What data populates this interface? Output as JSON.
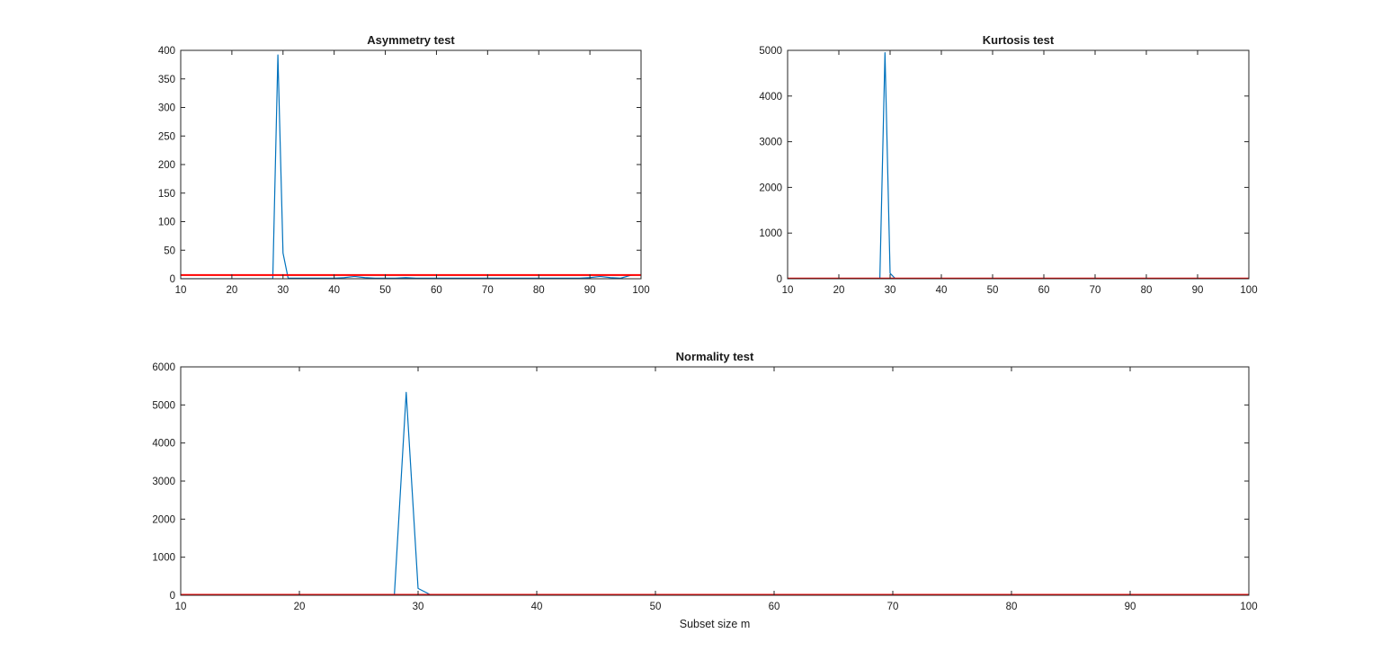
{
  "colors": {
    "series_blue": "#0072BD",
    "threshold_red": "#FF0000",
    "axes": "#262626",
    "background": "#FFFFFF"
  },
  "chart_data": [
    {
      "id": "asymmetry",
      "type": "line",
      "title": "Asymmetry test",
      "xlabel": "",
      "ylabel": "",
      "xlim": [
        10,
        100
      ],
      "ylim": [
        0,
        400
      ],
      "xticks": [
        10,
        20,
        30,
        40,
        50,
        60,
        70,
        80,
        90,
        100
      ],
      "yticks": [
        0,
        50,
        100,
        150,
        200,
        250,
        300,
        350,
        400
      ],
      "grid": false,
      "series": [
        {
          "color": "#0072BD",
          "x": [
            10,
            12,
            14,
            16,
            18,
            20,
            22,
            24,
            26,
            27,
            28,
            29,
            30,
            31,
            32,
            34,
            36,
            38,
            40,
            42,
            44,
            45,
            46,
            48,
            50,
            52,
            54,
            56,
            58,
            60,
            62,
            64,
            66,
            68,
            70,
            72,
            74,
            76,
            78,
            80,
            82,
            84,
            86,
            88,
            90,
            92,
            94,
            96,
            98,
            100
          ],
          "y": [
            0,
            0,
            0,
            0,
            0,
            0,
            0,
            0,
            0,
            0,
            0,
            392,
            45,
            1,
            1,
            1,
            1,
            1,
            1,
            2,
            4,
            3,
            2,
            1,
            1,
            1,
            2,
            1,
            1,
            1,
            1,
            1,
            1,
            1,
            1,
            1,
            1,
            1,
            1,
            1,
            1,
            1,
            1,
            1,
            2,
            4,
            2,
            1,
            6,
            7
          ]
        },
        {
          "color": "#FF0000",
          "x": [
            10,
            100
          ],
          "y": [
            6.5,
            6.5
          ]
        }
      ]
    },
    {
      "id": "kurtosis",
      "type": "line",
      "title": "Kurtosis test",
      "xlabel": "",
      "ylabel": "",
      "xlim": [
        10,
        100
      ],
      "ylim": [
        0,
        5000
      ],
      "xticks": [
        10,
        20,
        30,
        40,
        50,
        60,
        70,
        80,
        90,
        100
      ],
      "yticks": [
        0,
        1000,
        2000,
        3000,
        4000,
        5000
      ],
      "grid": false,
      "series": [
        {
          "color": "#0072BD",
          "x": [
            10,
            12,
            14,
            16,
            18,
            20,
            22,
            24,
            26,
            27,
            28,
            29,
            30,
            31,
            32,
            34,
            36,
            38,
            40,
            45,
            50,
            55,
            60,
            65,
            70,
            75,
            80,
            85,
            90,
            95,
            100
          ],
          "y": [
            0,
            0,
            0,
            0,
            0,
            0,
            0,
            0,
            0,
            0,
            0,
            4950,
            120,
            5,
            3,
            2,
            2,
            2,
            2,
            3,
            2,
            2,
            2,
            2,
            2,
            2,
            2,
            2,
            2,
            2,
            2
          ]
        },
        {
          "color": "#FF0000",
          "x": [
            10,
            100
          ],
          "y": [
            6,
            6
          ]
        }
      ]
    },
    {
      "id": "normality",
      "type": "line",
      "title": "Normality test",
      "xlabel": "Subset size m",
      "ylabel": "",
      "xlim": [
        10,
        100
      ],
      "ylim": [
        0,
        6000
      ],
      "xticks": [
        10,
        20,
        30,
        40,
        50,
        60,
        70,
        80,
        90,
        100
      ],
      "yticks": [
        0,
        1000,
        2000,
        3000,
        4000,
        5000,
        6000
      ],
      "grid": false,
      "series": [
        {
          "color": "#0072BD",
          "x": [
            10,
            12,
            14,
            16,
            18,
            20,
            22,
            24,
            26,
            27,
            28,
            29,
            30,
            31,
            32,
            34,
            36,
            38,
            40,
            45,
            50,
            55,
            60,
            65,
            70,
            75,
            80,
            85,
            90,
            95,
            100
          ],
          "y": [
            0,
            0,
            0,
            0,
            0,
            0,
            0,
            0,
            0,
            0,
            0,
            5330,
            180,
            20,
            8,
            6,
            6,
            5,
            5,
            5,
            5,
            5,
            5,
            5,
            5,
            5,
            5,
            5,
            5,
            5,
            5
          ]
        },
        {
          "color": "#FF0000",
          "x": [
            10,
            100
          ],
          "y": [
            12,
            12
          ]
        }
      ]
    }
  ]
}
